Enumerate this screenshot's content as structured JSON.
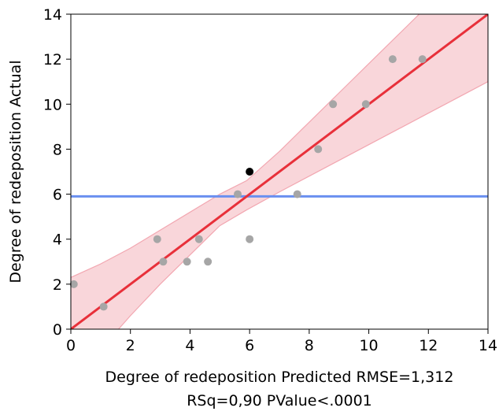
{
  "chart_data": {
    "type": "scatter",
    "xlabel": "Degree of redeposition Predicted RMSE=1,312",
    "xlabel_line2": "RSq=0,90 PValue<.0001",
    "ylabel": "Degree of redeposition Actual",
    "xlim": [
      0,
      14
    ],
    "ylim": [
      0,
      14
    ],
    "x_ticks": [
      "0",
      "2",
      "4",
      "6",
      "8",
      "10",
      "12",
      "14"
    ],
    "y_ticks": [
      "0",
      "2",
      "4",
      "6",
      "8",
      "10",
      "12",
      "14"
    ],
    "grid": false,
    "legend": "none",
    "points": [
      {
        "x": 0.1,
        "y": 2,
        "highlight": false
      },
      {
        "x": 1.1,
        "y": 1,
        "highlight": false
      },
      {
        "x": 2.9,
        "y": 4,
        "highlight": false
      },
      {
        "x": 3.1,
        "y": 3,
        "highlight": false
      },
      {
        "x": 3.9,
        "y": 3,
        "highlight": false
      },
      {
        "x": 4.3,
        "y": 4,
        "highlight": false
      },
      {
        "x": 4.6,
        "y": 3,
        "highlight": false
      },
      {
        "x": 5.6,
        "y": 6,
        "highlight": false
      },
      {
        "x": 6.0,
        "y": 7,
        "highlight": true
      },
      {
        "x": 6.0,
        "y": 4,
        "highlight": false
      },
      {
        "x": 7.6,
        "y": 6,
        "highlight": false
      },
      {
        "x": 8.3,
        "y": 8,
        "highlight": false
      },
      {
        "x": 8.8,
        "y": 10,
        "highlight": false
      },
      {
        "x": 9.9,
        "y": 10,
        "highlight": false
      },
      {
        "x": 10.8,
        "y": 12,
        "highlight": false
      },
      {
        "x": 11.8,
        "y": 12,
        "highlight": false
      }
    ],
    "fit_line": {
      "x": [
        0,
        14
      ],
      "y": [
        0,
        14
      ],
      "color": "#e8303a"
    },
    "confidence_band": {
      "x": [
        0,
        1,
        2,
        3,
        4,
        5,
        5.9,
        7,
        8,
        9,
        10,
        11,
        12,
        13,
        14
      ],
      "upper": [
        2.3,
        2.9,
        3.6,
        4.4,
        5.2,
        6.0,
        6.6,
        7.9,
        9.2,
        10.5,
        11.8,
        13.1,
        14.4,
        15.7,
        17.0
      ],
      "lower": [
        -2.3,
        -0.9,
        0.6,
        2.0,
        3.3,
        4.6,
        5.3,
        6.1,
        6.8,
        7.5,
        8.2,
        8.9,
        9.6,
        10.3,
        11.0
      ],
      "color": "#f9d6da"
    },
    "mean_line": {
      "y": 5.9,
      "color": "#6a8ff0"
    },
    "colors": {
      "point": "#a6a6a6",
      "point_highlight": "#000000",
      "band_edge": "#f2a7b1"
    }
  }
}
